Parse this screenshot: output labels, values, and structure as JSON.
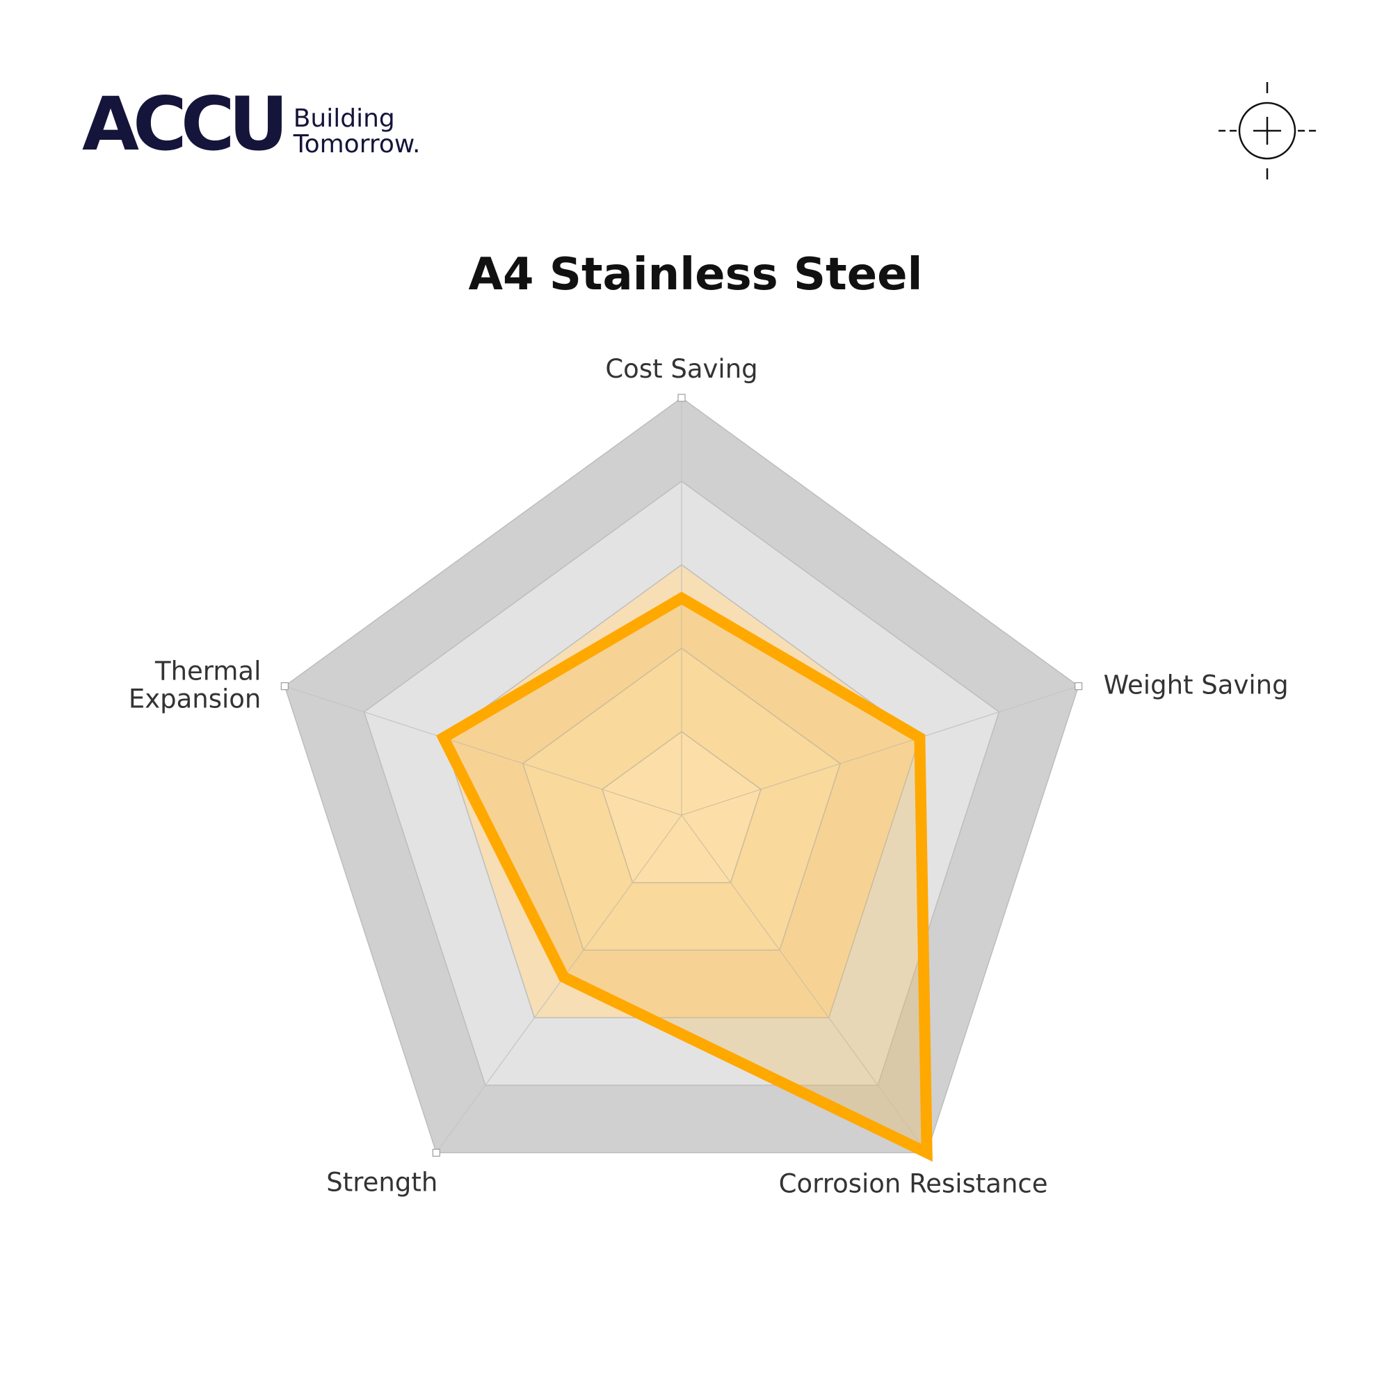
{
  "brand": {
    "logo_text": "ACCU",
    "tagline_line1": "Building",
    "tagline_line2": "Tomorrow.",
    "color": "#15143a"
  },
  "corner_icon": "crosshair-icon",
  "chart_data": {
    "type": "radar",
    "title": "A4 Stainless Steel",
    "axes": [
      {
        "label_lines": [
          "Cost Saving"
        ]
      },
      {
        "label_lines": [
          "Weight Saving"
        ]
      },
      {
        "label_lines": [
          "Corrosion Resistance"
        ]
      },
      {
        "label_lines": [
          "Strength"
        ]
      },
      {
        "label_lines": [
          "Thermal",
          "Expansion"
        ]
      }
    ],
    "levels": 5,
    "max": 5,
    "values": [
      2.6,
      3.0,
      5.0,
      2.4,
      3.0
    ],
    "line_color": "#FFA800",
    "fill_color": "#F5B740",
    "grid_colors": [
      "#FFEFD0",
      "#FBE6C0",
      "#F7DEB4",
      "#E3E3E3",
      "#D0D0D0"
    ],
    "grid": true,
    "legend": "none"
  }
}
